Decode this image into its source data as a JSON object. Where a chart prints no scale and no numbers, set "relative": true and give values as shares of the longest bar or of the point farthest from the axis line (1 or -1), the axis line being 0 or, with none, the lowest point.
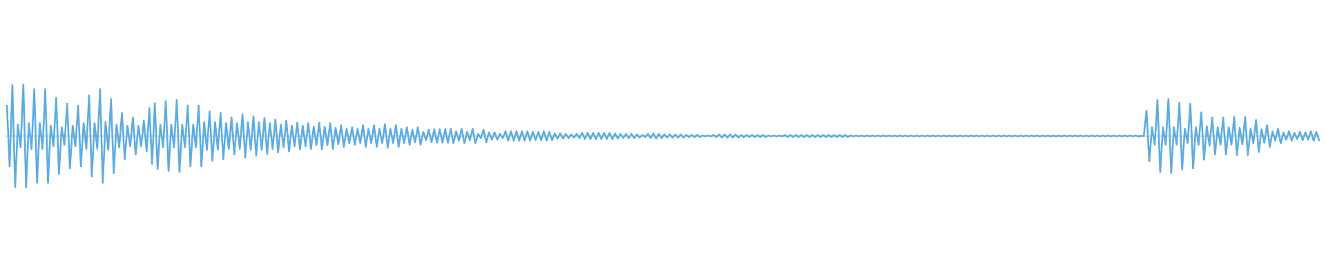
{
  "chart_data": {
    "type": "line",
    "relative": true,
    "categories": [
      null,
      null,
      null,
      null,
      null,
      null,
      null,
      null,
      null,
      null,
      null,
      null,
      null,
      null,
      null,
      null,
      null,
      null,
      null,
      null,
      null,
      null,
      null,
      null,
      null,
      null,
      null,
      null,
      null,
      null,
      null,
      null,
      null,
      null,
      null,
      null,
      null,
      null,
      null,
      null,
      null,
      null,
      null,
      null,
      null,
      null,
      null,
      null,
      null,
      null,
      null,
      null,
      null,
      null,
      null,
      null,
      null,
      null,
      null,
      null,
      null,
      null,
      null,
      null,
      null,
      null,
      null,
      null,
      null,
      null,
      null,
      null,
      null,
      null,
      null,
      null,
      null,
      null,
      null,
      null,
      null,
      null,
      null,
      null,
      null,
      null,
      null,
      null,
      null,
      null,
      null,
      null,
      null,
      null,
      null,
      null,
      null,
      null,
      null,
      null,
      null,
      null,
      null,
      null,
      null,
      null,
      null,
      null,
      null,
      null,
      null,
      null,
      null,
      null,
      null,
      null,
      null,
      null,
      null,
      null,
      null,
      null,
      null,
      null,
      null,
      null,
      null,
      null,
      null,
      null,
      null,
      null,
      null,
      null,
      null,
      null,
      null,
      null,
      null,
      null,
      null,
      null,
      null,
      null,
      null,
      null,
      null,
      null,
      null,
      null,
      null,
      null,
      null,
      null,
      null,
      null,
      null,
      null,
      null,
      null,
      null,
      null,
      null,
      null,
      null,
      null,
      null,
      null,
      null,
      null,
      null,
      null,
      null,
      null,
      null,
      null,
      null,
      null,
      null,
      null,
      null,
      null,
      null,
      null,
      null,
      null,
      null,
      null,
      null,
      null,
      null,
      null,
      null,
      null,
      null,
      null,
      null,
      null,
      null,
      null,
      null,
      null,
      null,
      null,
      null,
      null,
      null,
      null,
      null,
      null,
      null,
      null,
      null,
      null,
      null,
      null,
      null,
      null,
      null,
      null,
      null,
      null,
      null,
      null,
      null,
      null,
      null,
      null,
      null,
      null,
      null,
      null,
      null,
      null,
      null,
      null,
      null,
      null,
      null,
      null,
      null,
      null,
      null,
      null,
      null,
      null,
      null,
      null,
      null,
      null,
      null,
      null,
      null,
      null,
      null,
      null,
      null,
      null,
      null,
      null,
      null,
      null,
      null,
      null,
      null,
      null,
      null,
      null,
      null,
      null,
      null,
      null,
      null,
      null,
      null,
      null,
      null,
      null,
      null,
      null,
      null,
      null,
      null,
      null,
      null,
      null,
      null,
      null,
      null,
      null,
      null,
      null,
      null,
      null,
      null,
      null,
      null,
      null,
      null,
      null,
      null,
      null,
      null,
      null,
      null,
      null,
      null,
      null,
      null,
      null,
      null,
      null,
      null,
      null,
      null,
      null,
      null,
      null,
      null,
      null,
      null,
      null,
      null,
      null,
      null,
      null,
      null,
      null,
      null,
      null,
      null,
      null,
      null,
      null,
      null,
      null,
      null,
      null,
      null,
      null,
      null,
      null,
      null,
      null,
      null,
      null,
      null,
      null,
      null,
      null,
      null,
      null,
      null,
      null,
      null,
      null,
      null,
      null,
      null,
      null,
      null,
      null,
      null,
      null,
      null,
      null,
      null,
      null,
      null,
      null,
      null,
      null,
      null,
      null,
      null,
      null,
      null,
      null,
      null,
      null,
      null,
      null,
      null,
      null,
      null,
      null,
      null,
      null,
      null,
      null,
      null,
      null,
      null,
      null,
      null,
      null,
      null,
      null,
      null,
      null,
      null,
      null,
      null,
      null,
      null,
      null,
      null,
      null,
      null,
      null,
      null,
      null,
      null,
      null,
      null,
      null,
      null,
      null,
      null,
      null,
      null,
      null,
      null,
      null,
      null,
      null,
      null,
      null,
      null,
      null,
      null,
      null,
      null,
      null,
      null,
      null,
      null,
      null,
      null,
      null,
      null,
      null,
      null,
      null,
      null,
      null,
      null,
      null,
      null,
      null,
      null,
      null,
      null,
      null,
      null,
      null,
      null,
      null,
      null,
      null,
      null,
      null,
      null,
      null,
      null,
      null,
      null,
      null,
      null,
      null,
      null,
      null,
      null,
      null,
      null,
      null,
      null,
      null,
      null,
      null
    ],
    "series": [
      {
        "color": "#5dade2",
        "values": [
          0.59,
          -0.59,
          0.99,
          -0.99,
          0.22,
          -0.22,
          1,
          -1,
          0.25,
          -0.25,
          0.91,
          -0.91,
          0.25,
          -0.25,
          0.91,
          -0.91,
          0.2,
          -0.2,
          0.74,
          -0.74,
          0.17,
          -0.17,
          0.63,
          -0.63,
          0.2,
          -0.2,
          0.59,
          -0.59,
          0.25,
          -0.25,
          0.79,
          -0.79,
          0.25,
          -0.25,
          0.91,
          -0.91,
          0.27,
          -0.27,
          0.72,
          -0.72,
          0.22,
          -0.22,
          0.45,
          -0.45,
          0.2,
          -0.2,
          0.36,
          -0.36,
          0.2,
          -0.2,
          0.3,
          -0.3,
          0.54,
          -0.54,
          0.64,
          -0.64,
          0.22,
          -0.22,
          0.68,
          -0.68,
          0.22,
          -0.22,
          0.7,
          -0.7,
          0.22,
          -0.22,
          0.59,
          -0.59,
          0.22,
          -0.22,
          0.59,
          -0.59,
          0.27,
          -0.27,
          0.48,
          -0.48,
          0.27,
          -0.27,
          0.45,
          -0.45,
          0.25,
          -0.25,
          0.36,
          -0.36,
          0.25,
          -0.25,
          0.42,
          -0.42,
          0.27,
          -0.27,
          0.38,
          -0.38,
          0.27,
          -0.27,
          0.35,
          -0.35,
          0.25,
          -0.25,
          0.32,
          -0.32,
          0.22,
          -0.22,
          0.3,
          -0.3,
          0.2,
          -0.2,
          0.26,
          -0.26,
          0.2,
          -0.2,
          0.25,
          -0.25,
          0.18,
          -0.18,
          0.26,
          -0.26,
          0.18,
          -0.18,
          0.25,
          -0.25,
          0.16,
          -0.16,
          0.21,
          -0.21,
          0.14,
          -0.14,
          0.17,
          -0.17,
          0.14,
          -0.14,
          0.21,
          -0.21,
          0.14,
          -0.14,
          0.21,
          -0.21,
          0.14,
          -0.14,
          0.23,
          -0.23,
          0.14,
          -0.14,
          0.21,
          -0.21,
          0.14,
          -0.14,
          0.17,
          -0.17,
          0.12,
          -0.12,
          0.17,
          -0.17,
          0.08,
          -0.08,
          0.12,
          -0.12,
          0.13,
          -0.13,
          0.13,
          -0.13,
          0.13,
          -0.13,
          0.14,
          -0.14,
          0.09,
          -0.09,
          0.14,
          -0.14,
          0.08,
          -0.08,
          0.14,
          -0.14,
          0.04,
          -0.04,
          0.12,
          -0.12,
          0.07,
          -0.07,
          0.07,
          -0.07,
          0.04,
          -0.04,
          0.09,
          -0.09,
          0.09,
          -0.09,
          0.09,
          -0.09,
          0.09,
          -0.09,
          0.09,
          -0.09,
          0.08,
          -0.08,
          0.08,
          -0.08,
          0.09,
          -0.09,
          0.08,
          -0.08,
          0.05,
          -0.05,
          0.05,
          -0.05,
          0.04,
          -0.04,
          0.03,
          -0.03,
          0.04,
          -0.04,
          0.06,
          -0.06,
          0.06,
          -0.06,
          0.06,
          -0.06,
          0.06,
          -0.06,
          0.06,
          -0.06,
          0.06,
          -0.06,
          0.05,
          -0.05,
          0.04,
          -0.04,
          0.04,
          -0.04,
          0.04,
          -0.04,
          0.03,
          -0.03,
          0.02,
          -0.02,
          0.04,
          -0.04,
          0.05,
          -0.05,
          0.04,
          -0.04,
          0.03,
          -0.03,
          0.03,
          -0.03,
          0.03,
          -0.03,
          0.03,
          -0.03,
          0.02,
          -0.02,
          0.02,
          -0.02,
          0.02,
          -0.02,
          0.01,
          -0.01,
          0.01,
          -0.01,
          0.02,
          -0.02,
          0.03,
          -0.03,
          0.03,
          -0.03,
          0.03,
          -0.03,
          0.03,
          -0.03,
          0.02,
          -0.02,
          0.02,
          -0.02,
          0.02,
          -0.02,
          0.02,
          -0.02,
          0.02,
          -0.02,
          0.01,
          -0.01,
          0.01,
          -0.01,
          0.01,
          -0.01,
          0.02,
          -0.02,
          0.02,
          -0.02,
          0.02,
          -0.02,
          0.02,
          -0.02,
          0.02,
          -0.02,
          0.02,
          -0.02,
          0.02,
          -0.02,
          0.02,
          -0.02,
          0.02,
          -0.02,
          0.02,
          -0.02,
          0.02,
          -0.02,
          0.02,
          -0.02,
          0.01,
          -0.01,
          0.01,
          -0.01,
          0.01,
          -0.01,
          0.01,
          -0.01,
          0.01,
          -0.01,
          0.01,
          -0.01,
          0.01,
          -0.01,
          0.01,
          -0.01,
          0.01,
          -0.01,
          0.01,
          -0.01,
          0.01,
          -0.01,
          0.01,
          -0.01,
          0.01,
          -0.01,
          0.01,
          -0.01,
          0.01,
          -0.01,
          0.01,
          -0.01,
          0.01,
          -0.01,
          0.01,
          -0.01,
          0.01,
          -0.01,
          0.01,
          -0.01,
          0.01,
          -0.01,
          0.01,
          -0.01,
          0.01,
          -0.01,
          0.01,
          -0.01,
          0.01,
          -0.01,
          0.01,
          -0.01,
          0.01,
          -0.01,
          0.01,
          -0.01,
          0.01,
          -0.01,
          0.01,
          -0.01,
          0.01,
          -0.01,
          0.01,
          -0.01,
          0.01,
          -0.01,
          0.01,
          -0.01,
          0.01,
          -0.01,
          0.01,
          -0.01,
          0.01,
          -0.01,
          0.01,
          -0.01,
          0.01,
          -0.01,
          0.01,
          -0.01,
          0.01,
          -0.01,
          0.01,
          -0.01,
          0.01,
          -0.01,
          0.01,
          -0.01,
          0.01,
          -0.01,
          0.01,
          -0.01,
          0.01,
          -0.01,
          0.01,
          -0.01,
          0.01,
          -0.01,
          0.01,
          -0.01,
          0.01,
          -0.01,
          0.01,
          -0.01,
          0.01,
          -0.01,
          0,
          0,
          0.49,
          -0.49,
          0.17,
          -0.17,
          0.7,
          -0.7,
          0.17,
          -0.17,
          0.72,
          -0.72,
          0.17,
          -0.17,
          0.65,
          -0.65,
          0.14,
          -0.14,
          0.63,
          -0.63,
          0.17,
          -0.17,
          0.46,
          -0.46,
          0.19,
          -0.19,
          0.36,
          -0.36,
          0.17,
          -0.17,
          0.36,
          -0.36,
          0.17,
          -0.17,
          0.37,
          -0.37,
          0.16,
          -0.16,
          0.37,
          -0.37,
          0.14,
          -0.14,
          0.31,
          -0.31,
          0.13,
          -0.13,
          0.21,
          -0.21,
          0.09,
          -0.09,
          0.14,
          -0.14,
          0.07,
          -0.07,
          0.09,
          -0.09,
          0.06,
          -0.06,
          0.08,
          -0.08,
          0.07,
          -0.07,
          0.09,
          -0.09,
          0.08,
          -0.08
        ]
      }
    ]
  }
}
